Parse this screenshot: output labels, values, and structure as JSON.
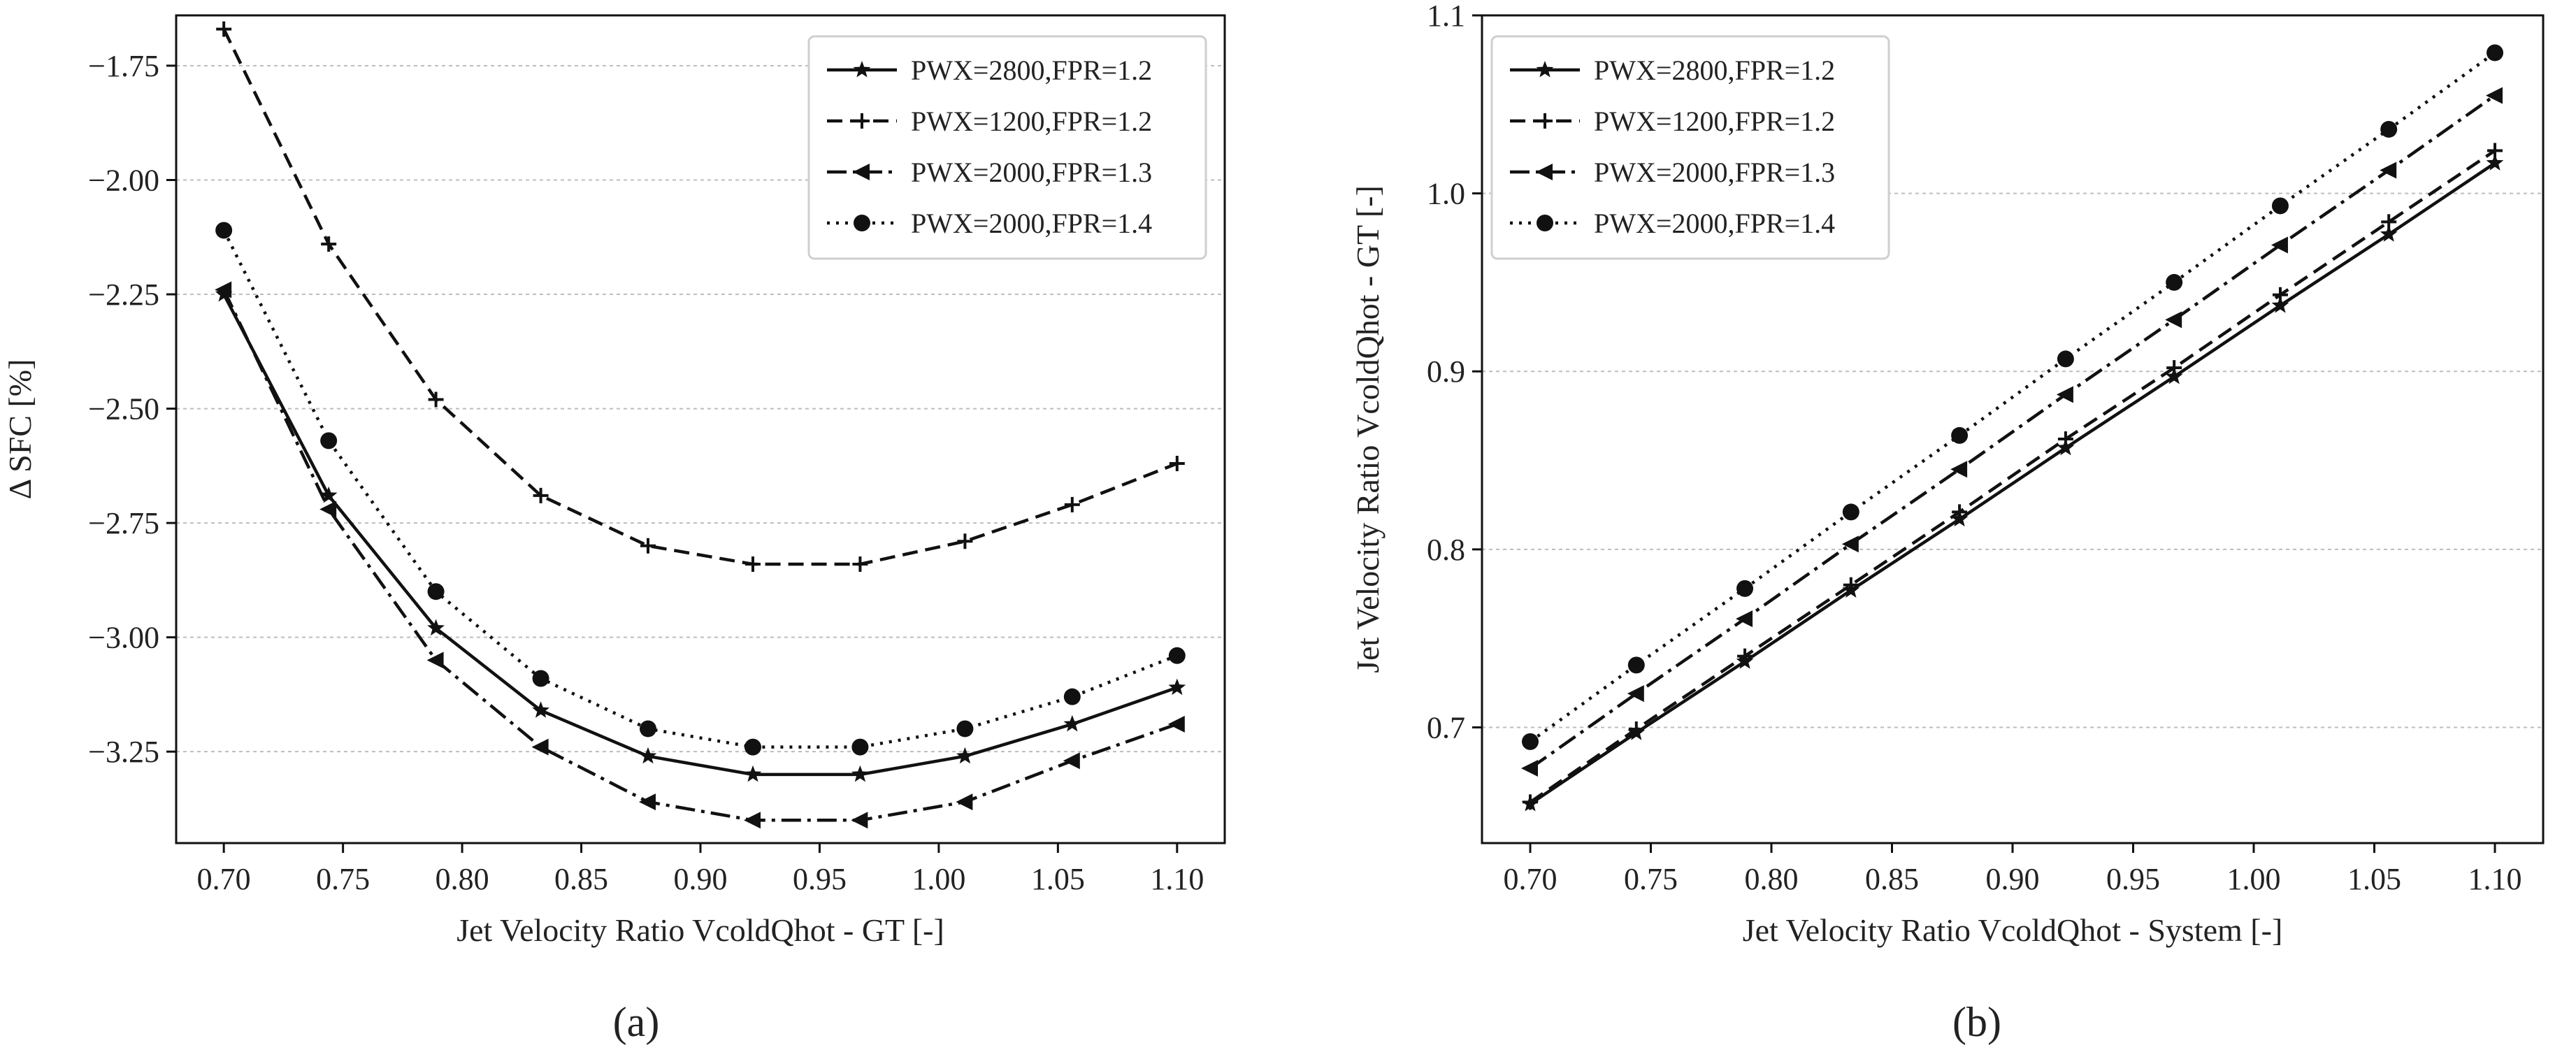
{
  "chart_data": [
    {
      "type": "line",
      "caption": "(a)",
      "xlabel": "Jet Velocity Ratio VcoldQhot - GT [-]",
      "ylabel": "Δ SFC [%]",
      "xlim": [
        0.68,
        1.12
      ],
      "ylim": [
        -3.45,
        -1.64
      ],
      "x_ticks": [
        0.7,
        0.75,
        0.8,
        0.85,
        0.9,
        0.95,
        1.0,
        1.05,
        1.1
      ],
      "x_tick_labels": [
        "0.70",
        "0.75",
        "0.80",
        "0.85",
        "0.90",
        "0.95",
        "1.00",
        "1.05",
        "1.10"
      ],
      "y_ticks": [
        -3.25,
        -3.0,
        -2.75,
        -2.5,
        -2.25,
        -2.0,
        -1.75
      ],
      "y_tick_labels": [
        "−3.25",
        "−3.00",
        "−2.75",
        "−2.50",
        "−2.25",
        "−2.00",
        "−1.75"
      ],
      "grid": "horizontal dotted",
      "legend_position": "top-right",
      "x": [
        0.7,
        0.744,
        0.789,
        0.833,
        0.878,
        0.922,
        0.967,
        1.011,
        1.056,
        1.1
      ],
      "series": [
        {
          "name": "PWX=2800,FPR=1.2",
          "style": "solid",
          "marker": "star",
          "values": [
            -2.25,
            -2.69,
            -2.98,
            -3.16,
            -3.26,
            -3.3,
            -3.3,
            -3.26,
            -3.19,
            -3.11
          ]
        },
        {
          "name": "PWX=1200,FPR=1.2",
          "style": "dashed",
          "marker": "plus",
          "values": [
            -1.67,
            -2.14,
            -2.48,
            -2.69,
            -2.8,
            -2.84,
            -2.84,
            -2.79,
            -2.71,
            -2.62
          ]
        },
        {
          "name": "PWX=2000,FPR=1.3",
          "style": "dashdot",
          "marker": "triangle-left",
          "values": [
            -2.24,
            -2.72,
            -3.05,
            -3.24,
            -3.36,
            -3.4,
            -3.4,
            -3.36,
            -3.27,
            -3.19
          ]
        },
        {
          "name": "PWX=2000,FPR=1.4",
          "style": "dotted",
          "marker": "circle",
          "values": [
            -2.11,
            -2.57,
            -2.9,
            -3.09,
            -3.2,
            -3.24,
            -3.24,
            -3.2,
            -3.13,
            -3.04
          ]
        }
      ]
    },
    {
      "type": "line",
      "caption": "(b)",
      "xlabel": "Jet Velocity Ratio VcoldQhot - System [-]",
      "ylabel": "Jet Velocity Ratio VcoldQhot - GT [-]",
      "xlim": [
        0.68,
        1.12
      ],
      "ylim": [
        0.635,
        1.1
      ],
      "x_ticks": [
        0.7,
        0.75,
        0.8,
        0.85,
        0.9,
        0.95,
        1.0,
        1.05,
        1.1
      ],
      "x_tick_labels": [
        "0.70",
        "0.75",
        "0.80",
        "0.85",
        "0.90",
        "0.95",
        "1.00",
        "1.05",
        "1.10"
      ],
      "y_ticks": [
        0.7,
        0.8,
        0.9,
        1.0,
        1.1
      ],
      "y_tick_labels": [
        "0.7",
        "0.8",
        "0.9",
        "1.0",
        "1.1"
      ],
      "grid": "horizontal dotted",
      "legend_position": "top-left",
      "x": [
        0.7,
        0.744,
        0.789,
        0.833,
        0.878,
        0.922,
        0.967,
        1.011,
        1.056,
        1.1
      ],
      "series": [
        {
          "name": "PWX=2800,FPR=1.2",
          "style": "solid",
          "marker": "star",
          "values": [
            0.657,
            0.697,
            0.737,
            0.777,
            0.817,
            0.857,
            0.897,
            0.937,
            0.977,
            1.017
          ]
        },
        {
          "name": "PWX=1200,FPR=1.2",
          "style": "dashed",
          "marker": "plus",
          "values": [
            0.658,
            0.699,
            0.74,
            0.78,
            0.821,
            0.862,
            0.902,
            0.943,
            0.984,
            1.024
          ]
        },
        {
          "name": "PWX=2000,FPR=1.3",
          "style": "dashdot",
          "marker": "triangle-left",
          "values": [
            0.677,
            0.719,
            0.761,
            0.803,
            0.845,
            0.887,
            0.929,
            0.971,
            1.013,
            1.055
          ]
        },
        {
          "name": "PWX=2000,FPR=1.4",
          "style": "dotted",
          "marker": "circle",
          "values": [
            0.692,
            0.735,
            0.778,
            0.821,
            0.864,
            0.907,
            0.95,
            0.993,
            1.036,
            1.079
          ]
        }
      ]
    }
  ]
}
